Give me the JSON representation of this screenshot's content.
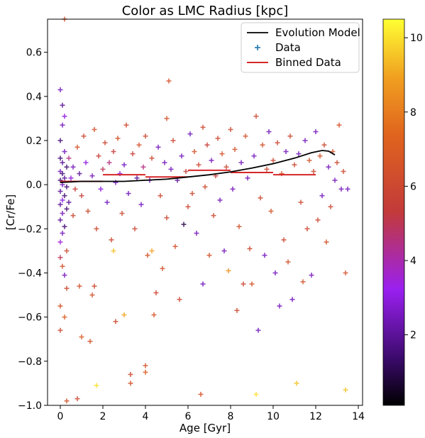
{
  "chart_data": {
    "type": "scatter",
    "title": "Color as LMC Radius [kpc]",
    "xlabel": "Age [Gyr]",
    "ylabel": "[Cr/Fe]",
    "xlim": [
      -0.6,
      14.2
    ],
    "ylim": [
      -1.0,
      0.75
    ],
    "xticks": [
      0,
      2,
      4,
      6,
      8,
      10,
      12,
      14
    ],
    "xtick_labels": [
      "0",
      "2",
      "4",
      "6",
      "8",
      "10",
      "12",
      "14"
    ],
    "yticks": [
      0.6,
      0.4,
      0.2,
      0.0,
      -0.2,
      -0.4,
      -0.6,
      -0.8,
      -1.0
    ],
    "ytick_labels": [
      "0.6",
      "0.4",
      "0.2",
      "0.0",
      "−0.2",
      "−0.4",
      "−0.6",
      "−0.8",
      "−1.0"
    ],
    "grid": false,
    "legend_position": "top-right",
    "legend": [
      {
        "label": "Evolution Model",
        "marker": "line",
        "color": "#000000"
      },
      {
        "label": "Data",
        "marker": "plus",
        "color": "#1f77b4"
      },
      {
        "label": "Binned Data",
        "marker": "line",
        "color": "#d62728"
      }
    ],
    "colorbar": {
      "label": "",
      "range": [
        0.1,
        10.5
      ],
      "ticks": [
        2,
        4,
        6,
        8,
        10
      ],
      "tick_labels": [
        "2",
        "4",
        "6",
        "8",
        "10"
      ],
      "colormap": "gnuplot"
    },
    "series": [
      {
        "name": "Evolution Model",
        "type": "line",
        "color": "#000000",
        "points": [
          [
            0,
            0.01
          ],
          [
            1,
            0.015
          ],
          [
            2,
            0.015
          ],
          [
            3,
            0.015
          ],
          [
            4,
            0.02
          ],
          [
            5,
            0.025
          ],
          [
            6,
            0.035
          ],
          [
            7,
            0.045
          ],
          [
            8,
            0.058
          ],
          [
            9,
            0.075
          ],
          [
            10,
            0.095
          ],
          [
            11,
            0.12
          ],
          [
            11.8,
            0.145
          ],
          [
            12.3,
            0.155
          ],
          [
            12.6,
            0.152
          ],
          [
            12.9,
            0.135
          ]
        ]
      },
      {
        "name": "Binned Data",
        "type": "segments",
        "color": "#d62728",
        "segments": [
          [
            0,
            2,
            0.015
          ],
          [
            2,
            4,
            0.045
          ],
          [
            4,
            6,
            0.035
          ],
          [
            6,
            8,
            0.065
          ],
          [
            8,
            10,
            0.055
          ],
          [
            10,
            12,
            0.045
          ]
        ]
      },
      {
        "name": "Data",
        "type": "scatter",
        "marker": "plus",
        "points": [
          [
            0.0,
            0.43,
            2.5
          ],
          [
            0.1,
            0.36,
            2.0
          ],
          [
            0.2,
            0.31,
            3.0
          ],
          [
            0.1,
            0.27,
            2.5
          ],
          [
            0.0,
            0.2,
            1.5
          ],
          [
            0.2,
            0.15,
            2.5
          ],
          [
            0.0,
            0.12,
            1.5
          ],
          [
            0.1,
            0.1,
            2.0
          ],
          [
            0.3,
            0.08,
            1.5
          ],
          [
            0.0,
            0.06,
            2.5
          ],
          [
            0.1,
            0.05,
            1.5
          ],
          [
            0.2,
            0.03,
            2.0
          ],
          [
            0.0,
            0.02,
            1.5
          ],
          [
            0.1,
            0.0,
            2.5
          ],
          [
            0.3,
            -0.01,
            1.5
          ],
          [
            0.0,
            -0.03,
            2.0
          ],
          [
            0.2,
            -0.05,
            1.5
          ],
          [
            0.1,
            -0.07,
            3.0
          ],
          [
            0.0,
            -0.09,
            2.0
          ],
          [
            0.3,
            -0.11,
            1.5
          ],
          [
            0.1,
            -0.13,
            2.5
          ],
          [
            0.0,
            -0.16,
            2.0
          ],
          [
            0.2,
            -0.19,
            1.5
          ],
          [
            0.1,
            -0.22,
            2.5
          ],
          [
            0.0,
            -0.26,
            3.5
          ],
          [
            0.3,
            -0.3,
            6.0
          ],
          [
            0.0,
            -0.33,
            5.0
          ],
          [
            0.1,
            -0.37,
            6.5
          ],
          [
            0.2,
            -0.41,
            2.5
          ],
          [
            0.3,
            -0.47,
            6.0
          ],
          [
            0.0,
            -0.55,
            6.5
          ],
          [
            0.2,
            -0.6,
            7.0
          ],
          [
            0.0,
            -0.66,
            6.0
          ],
          [
            0.3,
            -0.98,
            6.5
          ],
          [
            0.8,
            -0.97,
            6.0
          ],
          [
            0.2,
            0.75,
            6.5
          ],
          [
            0.4,
            0.12,
            4.5
          ],
          [
            0.6,
            0.08,
            2.5
          ],
          [
            0.5,
            0.03,
            3.0
          ],
          [
            0.7,
            -0.02,
            5.5
          ],
          [
            0.4,
            -0.08,
            2.0
          ],
          [
            0.6,
            -0.14,
            6.0
          ],
          [
            0.8,
            0.17,
            6.5
          ],
          [
            0.9,
            0.05,
            2.0
          ],
          [
            1.0,
            -0.05,
            5.5
          ],
          [
            1.1,
            0.22,
            6.0
          ],
          [
            0.9,
            -0.46,
            6.5
          ],
          [
            1.0,
            -0.69,
            7.0
          ],
          [
            1.4,
            -0.71,
            6.5
          ],
          [
            1.2,
            0.1,
            3.0
          ],
          [
            1.3,
            -0.12,
            6.0
          ],
          [
            1.5,
            0.04,
            2.5
          ],
          [
            1.6,
            0.25,
            6.5
          ],
          [
            1.7,
            -0.2,
            6.0
          ],
          [
            1.5,
            -0.5,
            6.5
          ],
          [
            1.6,
            -0.46,
            6.0
          ],
          [
            1.7,
            -0.91,
            10.0
          ],
          [
            1.8,
            0.13,
            5.5
          ],
          [
            1.9,
            -0.02,
            3.0
          ],
          [
            2.0,
            0.07,
            5.0
          ],
          [
            2.1,
            0.19,
            6.0
          ],
          [
            2.2,
            -0.08,
            2.5
          ],
          [
            2.3,
            0.1,
            4.5
          ],
          [
            2.4,
            -0.25,
            6.0
          ],
          [
            2.5,
            0.15,
            5.5
          ],
          [
            2.5,
            -0.3,
            9.5
          ],
          [
            2.6,
            0.01,
            2.5
          ],
          [
            2.6,
            -0.62,
            6.0
          ],
          [
            2.7,
            0.21,
            6.5
          ],
          [
            2.8,
            0.05,
            3.0
          ],
          [
            2.9,
            -0.13,
            6.0
          ],
          [
            3.0,
            0.09,
            2.5
          ],
          [
            3.0,
            -0.59,
            9.0
          ],
          [
            3.1,
            0.27,
            6.0
          ],
          [
            3.2,
            -0.04,
            2.5
          ],
          [
            3.3,
            -0.86,
            6.0
          ],
          [
            3.3,
            -0.9,
            6.5
          ],
          [
            3.4,
            0.14,
            5.5
          ],
          [
            3.5,
            -0.2,
            6.0
          ],
          [
            3.6,
            0.03,
            2.0
          ],
          [
            3.7,
            0.18,
            6.5
          ],
          [
            3.8,
            -0.09,
            2.5
          ],
          [
            3.9,
            0.08,
            4.5
          ],
          [
            4.0,
            -0.82,
            6.5
          ],
          [
            4.0,
            -0.85,
            7.0
          ],
          [
            4.0,
            0.22,
            6.0
          ],
          [
            4.1,
            -0.32,
            6.5
          ],
          [
            4.2,
            0.02,
            2.5
          ],
          [
            4.3,
            -0.3,
            9.0
          ],
          [
            4.3,
            0.12,
            6.0
          ],
          [
            4.4,
            -0.59,
            6.5
          ],
          [
            4.5,
            -0.49,
            6.0
          ],
          [
            4.6,
            0.17,
            2.5
          ],
          [
            4.7,
            -0.05,
            6.0
          ],
          [
            4.8,
            -0.38,
            6.5
          ],
          [
            4.9,
            0.1,
            2.5
          ],
          [
            5.0,
            0.3,
            6.5
          ],
          [
            5.0,
            -0.15,
            6.0
          ],
          [
            5.1,
            0.47,
            6.5
          ],
          [
            5.2,
            0.07,
            2.5
          ],
          [
            5.3,
            0.2,
            6.0
          ],
          [
            5.4,
            -0.28,
            6.5
          ],
          [
            5.5,
            0.02,
            2.0
          ],
          [
            5.6,
            -0.52,
            6.0
          ],
          [
            5.7,
            0.13,
            2.5
          ],
          [
            5.8,
            -0.18,
            1.0
          ],
          [
            5.9,
            0.06,
            5.5
          ],
          [
            6.0,
            -0.1,
            6.0
          ],
          [
            6.1,
            0.23,
            2.5
          ],
          [
            6.2,
            -0.04,
            6.0
          ],
          [
            6.3,
            0.15,
            6.5
          ],
          [
            6.4,
            -0.22,
            2.5
          ],
          [
            6.5,
            0.09,
            6.0
          ],
          [
            6.6,
            -0.95,
            6.5
          ],
          [
            6.7,
            0.26,
            6.0
          ],
          [
            6.7,
            -0.45,
            2.5
          ],
          [
            6.8,
            -0.01,
            6.0
          ],
          [
            6.9,
            0.18,
            5.5
          ],
          [
            7.0,
            -0.32,
            6.5
          ],
          [
            7.1,
            0.11,
            2.5
          ],
          [
            7.2,
            -0.14,
            6.0
          ],
          [
            7.3,
            0.04,
            5.5
          ],
          [
            7.4,
            0.21,
            6.0
          ],
          [
            7.5,
            -0.07,
            2.5
          ],
          [
            7.6,
            0.14,
            6.5
          ],
          [
            7.7,
            -0.3,
            2.5
          ],
          [
            7.8,
            0.08,
            6.0
          ],
          [
            7.9,
            -0.39,
            8.5
          ],
          [
            8.0,
            0.25,
            6.0
          ],
          [
            8.1,
            -0.02,
            2.5
          ],
          [
            8.2,
            0.16,
            6.5
          ],
          [
            8.3,
            -0.57,
            6.0
          ],
          [
            8.4,
            -0.19,
            6.5
          ],
          [
            8.5,
            0.1,
            2.5
          ],
          [
            8.6,
            -0.45,
            6.0
          ],
          [
            8.7,
            0.22,
            6.5
          ],
          [
            8.8,
            0.03,
            2.5
          ],
          [
            8.9,
            -0.29,
            6.0
          ],
          [
            9.0,
            -0.45,
            6.5
          ],
          [
            9.1,
            0.13,
            2.5
          ],
          [
            9.2,
            0.31,
            6.0
          ],
          [
            9.2,
            -0.95,
            10.0
          ],
          [
            9.3,
            -0.66,
            2.5
          ],
          [
            9.4,
            -0.06,
            6.0
          ],
          [
            9.5,
            0.18,
            6.5
          ],
          [
            9.6,
            -0.32,
            2.5
          ],
          [
            9.7,
            0.07,
            6.0
          ],
          [
            9.8,
            0.24,
            2.5
          ],
          [
            9.9,
            -0.12,
            6.5
          ],
          [
            10.0,
            0.11,
            6.0
          ],
          [
            10.1,
            -0.4,
            2.5
          ],
          [
            10.2,
            0.19,
            6.0
          ],
          [
            10.3,
            -0.55,
            2.5
          ],
          [
            10.4,
            0.05,
            6.5
          ],
          [
            10.5,
            -0.25,
            6.0
          ],
          [
            10.6,
            0.15,
            2.5
          ],
          [
            10.7,
            -0.35,
            6.5
          ],
          [
            10.8,
            0.22,
            6.0
          ],
          [
            10.9,
            -0.52,
            2.5
          ],
          [
            11.0,
            0.09,
            6.0
          ],
          [
            11.1,
            -0.9,
            9.5
          ],
          [
            11.2,
            0.14,
            2.5
          ],
          [
            11.3,
            -0.08,
            6.0
          ],
          [
            11.4,
            -0.44,
            6.5
          ],
          [
            11.5,
            0.2,
            2.5
          ],
          [
            11.6,
            -0.2,
            6.0
          ],
          [
            11.7,
            0.11,
            6.5
          ],
          [
            11.8,
            -0.41,
            2.5
          ],
          [
            11.9,
            0.06,
            6.0
          ],
          [
            12.0,
            0.24,
            2.5
          ],
          [
            12.1,
            -0.16,
            6.0
          ],
          [
            12.2,
            0.13,
            6.5
          ],
          [
            12.3,
            -0.05,
            2.5
          ],
          [
            12.4,
            0.18,
            6.0
          ],
          [
            12.5,
            -0.26,
            6.5
          ],
          [
            12.6,
            0.08,
            2.5
          ],
          [
            12.7,
            -0.1,
            6.0
          ],
          [
            12.8,
            0.15,
            6.5
          ],
          [
            12.9,
            0.02,
            2.5
          ],
          [
            13.0,
            0.1,
            6.0
          ],
          [
            13.1,
            0.27,
            6.5
          ],
          [
            13.2,
            -0.02,
            2.5
          ],
          [
            13.3,
            0.06,
            6.0
          ],
          [
            13.4,
            -0.4,
            6.5
          ],
          [
            13.4,
            -0.93,
            9.5
          ],
          [
            13.5,
            -0.02,
            2.5
          ]
        ]
      }
    ]
  }
}
